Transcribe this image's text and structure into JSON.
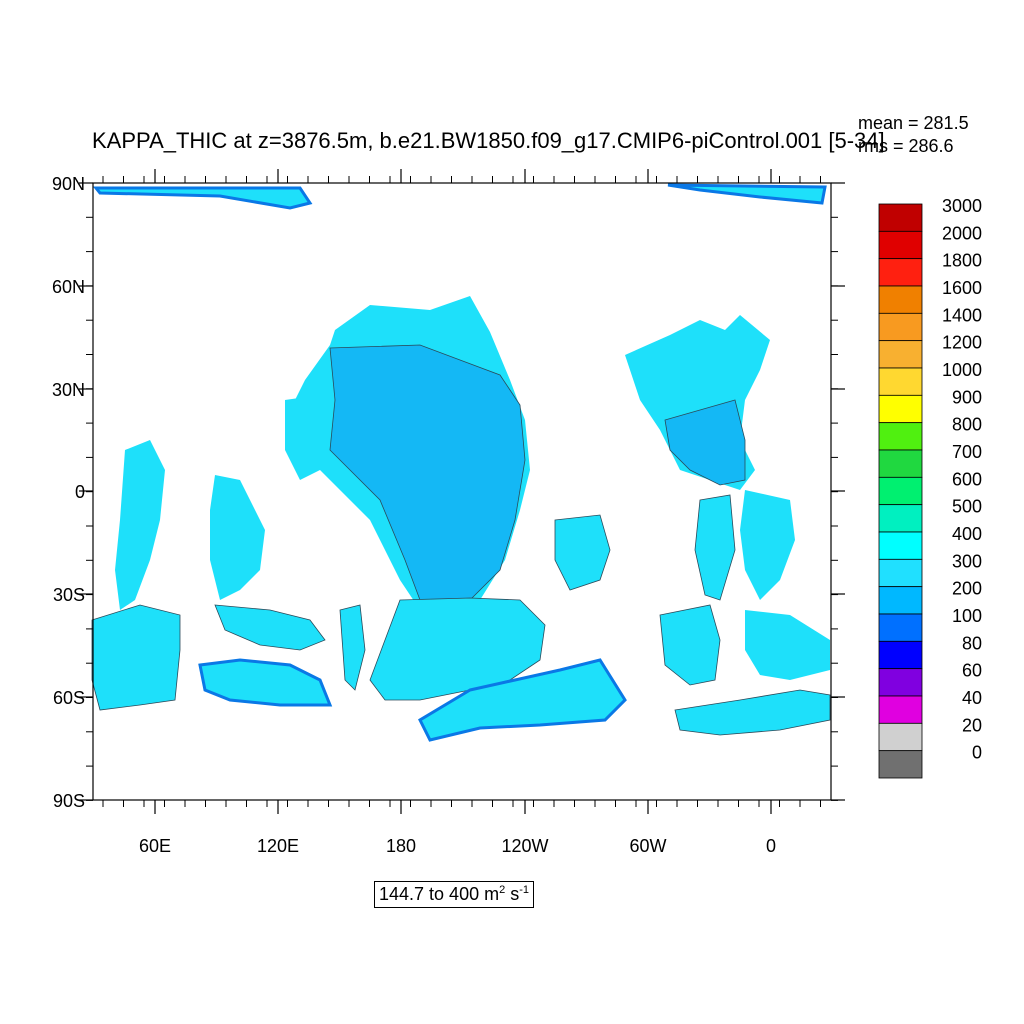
{
  "title": "KAPPA_THIC at z=3876.5m, b.e21.BW1850.f09_g17.CMIP6-piControl.001 [5-34]",
  "stats": {
    "mean": "mean = 281.5",
    "rms": "rms = 286.6"
  },
  "range_label": {
    "text": "144.7 to 400 m",
    "exp1": "2",
    "unit": " s",
    "exp2": "-1"
  },
  "axes": {
    "x_ticks": [
      "60E",
      "120E",
      "180",
      "120W",
      "60W",
      "0"
    ],
    "y_ticks": [
      "90N",
      "60N",
      "30N",
      "0",
      "30S",
      "60S",
      "90S"
    ]
  },
  "colorbar": {
    "labels": [
      "3000",
      "2000",
      "1800",
      "1600",
      "1400",
      "1200",
      "1000",
      "900",
      "800",
      "700",
      "600",
      "500",
      "400",
      "300",
      "200",
      "100",
      "80",
      "60",
      "40",
      "20",
      "0"
    ],
    "colors": [
      "#c00000",
      "#e00000",
      "#ff2010",
      "#f08000",
      "#f89a20",
      "#f8b030",
      "#ffd830",
      "#ffff00",
      "#50f010",
      "#20d840",
      "#00f070",
      "#00f0c0",
      "#00ffff",
      "#20e0ff",
      "#00b8ff",
      "#0070ff",
      "#0000ff",
      "#8000e0",
      "#e000e0",
      "#d0d0d0",
      "#707070"
    ]
  },
  "fill_colors": {
    "light": "#1ee0fa",
    "mid": "#14b8f5",
    "dark": "#0a78e6",
    "outline": "#2a4a5a"
  }
}
